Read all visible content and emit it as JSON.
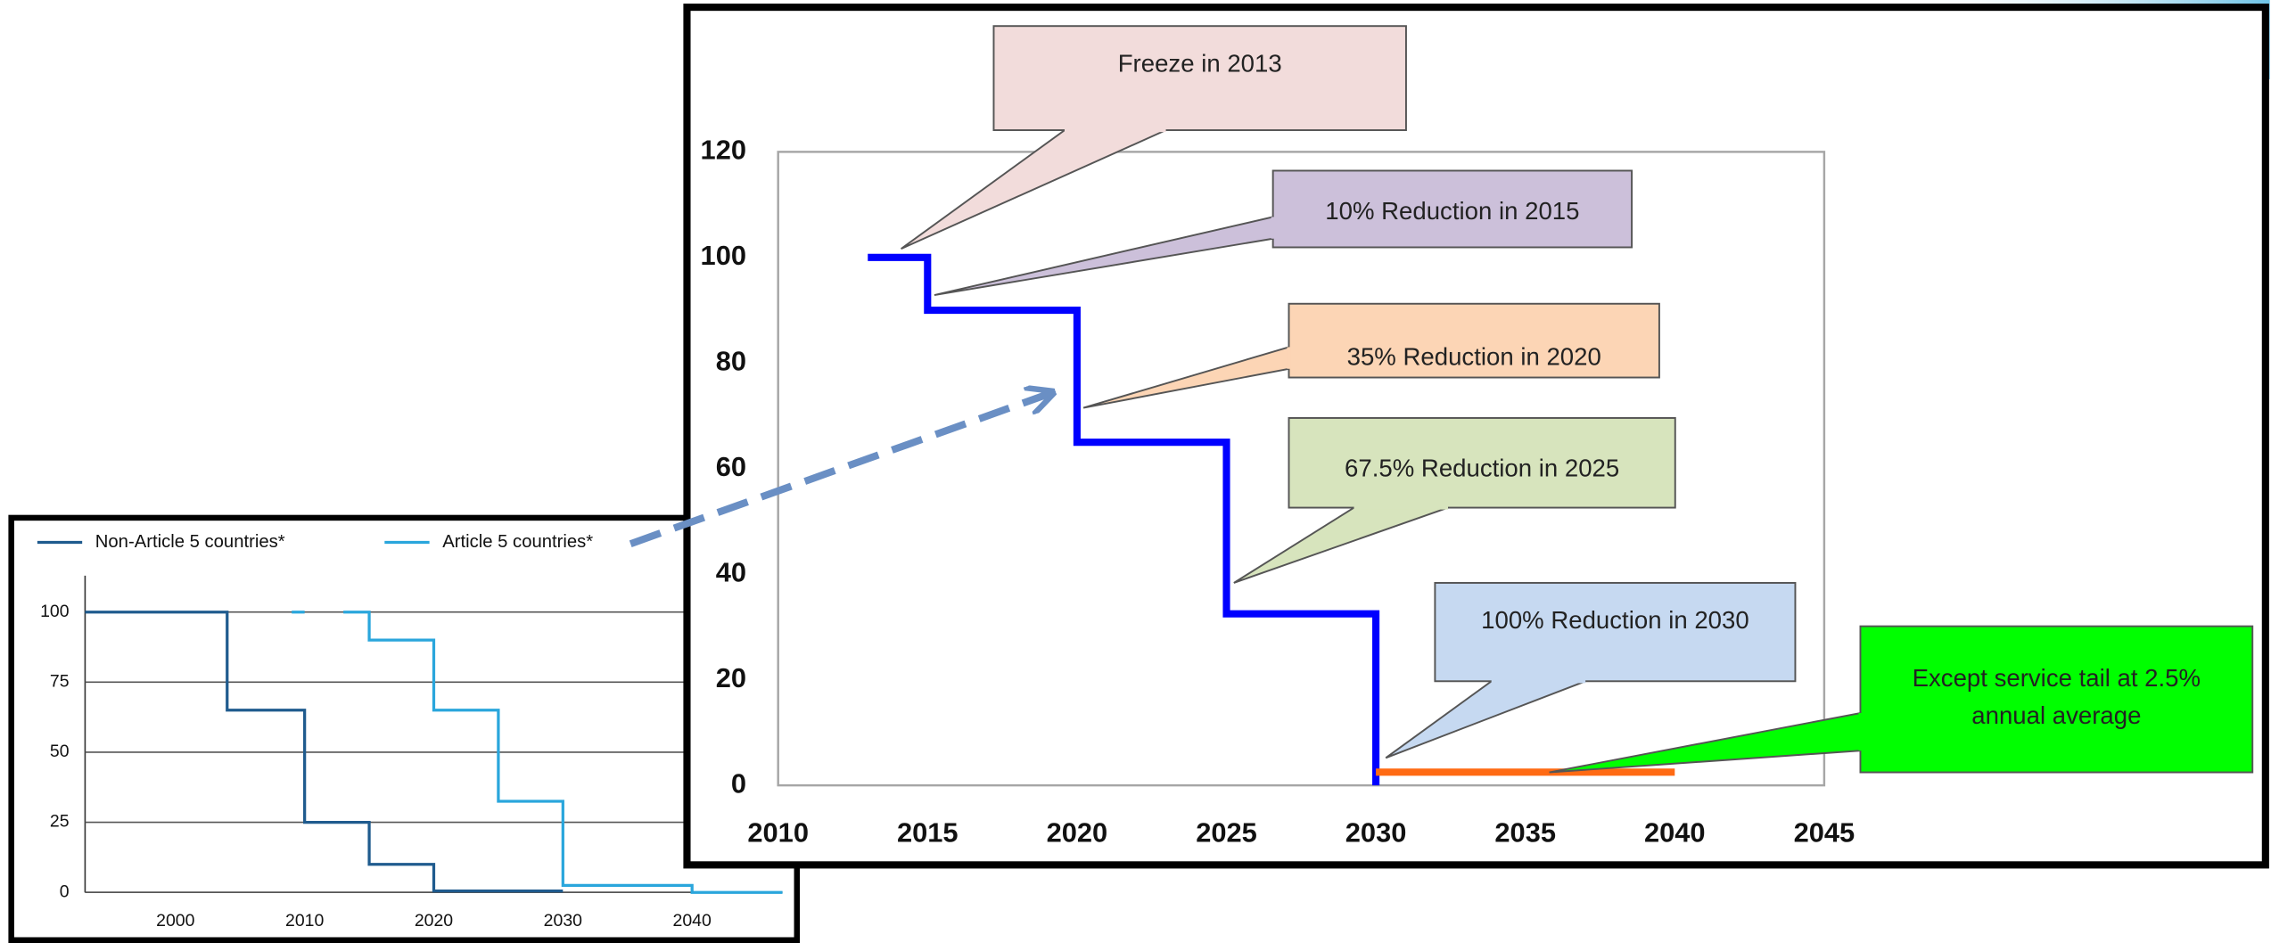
{
  "chart_data": [
    {
      "type": "line",
      "xlim": [
        2010,
        2045
      ],
      "xticks": [
        2010,
        2015,
        2020,
        2025,
        2030,
        2035,
        2040,
        2045
      ],
      "ylim": [
        0,
        120
      ],
      "yticks": [
        0,
        20,
        40,
        60,
        80,
        100,
        120
      ],
      "grid": false,
      "series": [
        {
          "color": "#0000ff",
          "x": [
            2013,
            2015,
            2015,
            2020,
            2020,
            2025,
            2025,
            2030,
            2030
          ],
          "values": [
            100,
            100,
            90,
            90,
            65,
            65,
            32.5,
            32.5,
            0
          ]
        },
        {
          "color": "#ff6a13",
          "x": [
            2030,
            2040
          ],
          "values": [
            2.5,
            2.5
          ]
        }
      ],
      "annotations": [
        {
          "lines": [
            "Freeze in 2013"
          ],
          "color": "#f2dcdb"
        },
        {
          "lines": [
            "10% Reduction in 2015"
          ],
          "color": "#ccc0da"
        },
        {
          "lines": [
            "35% Reduction in 2020"
          ],
          "color": "#fcd5b5"
        },
        {
          "lines": [
            "67.5% Reduction in 2025"
          ],
          "color": "#d7e4bd"
        },
        {
          "lines": [
            "100% Reduction in 2030"
          ],
          "color": "#c6d9f1"
        },
        {
          "lines": [
            "Except service tail at 2.5%",
            "annual average"
          ],
          "color": "#00ff00"
        }
      ]
    },
    {
      "type": "line",
      "xlim": [
        1993,
        2047
      ],
      "xticks": [
        2000,
        2010,
        2020,
        2030,
        2040
      ],
      "ylim": [
        0,
        113
      ],
      "yticks": [
        0,
        25,
        50,
        75,
        100
      ],
      "grid": true,
      "series": [
        {
          "name": "Non-Article 5 countries*",
          "color": "#1f5b8e",
          "x": [
            1993,
            2004,
            2004,
            2010,
            2010,
            2015,
            2015,
            2020,
            2020,
            2030
          ],
          "values": [
            100,
            100,
            65,
            65,
            25,
            25,
            10,
            10,
            0.5,
            0.5
          ]
        },
        {
          "name": "Article 5 countries*",
          "color": "#2aa6dc",
          "x": [
            2009,
            2010,
            null,
            2013,
            2015,
            2015,
            2020,
            2020,
            2025,
            2025,
            2030,
            2030,
            2040,
            2040,
            2047
          ],
          "values": [
            100,
            100,
            null,
            100,
            100,
            90,
            90,
            65,
            65,
            32.5,
            32.5,
            2.5,
            2.5,
            0,
            0
          ]
        }
      ]
    }
  ]
}
